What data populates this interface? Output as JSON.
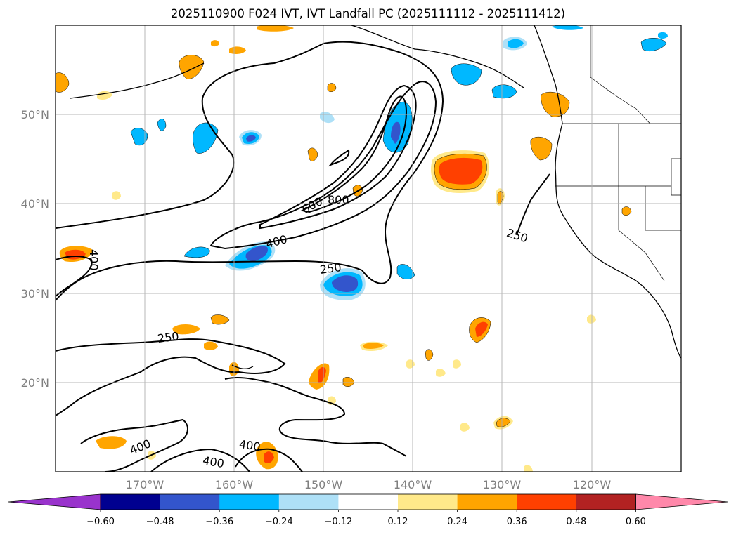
{
  "title": "2025110900 F024 IVT, IVT Landfall PC (2025111112 - 2025111412)",
  "lat_labels": [
    "50°N",
    "40°N",
    "30°N",
    "20°N"
  ],
  "lon_labels": [
    "170°W",
    "160°W",
    "150°W",
    "140°W",
    "130°W",
    "120°W"
  ],
  "contour_labels": [
    "600",
    "800",
    "400",
    "250",
    "250",
    "400",
    "250",
    "400",
    "400",
    "400"
  ],
  "colorbar": {
    "ticks": [
      "−0.60",
      "−0.48",
      "−0.36",
      "−0.24",
      "−0.12",
      "0.12",
      "0.24",
      "0.36",
      "0.48",
      "0.60"
    ],
    "colors": [
      "#9933cc",
      "#000090",
      "#3355cc",
      "#00b8ff",
      "#aee0f7",
      "#ffffff",
      "#ffe98a",
      "#ffa500",
      "#ff4000",
      "#b22222",
      "#ff88aa"
    ]
  }
}
